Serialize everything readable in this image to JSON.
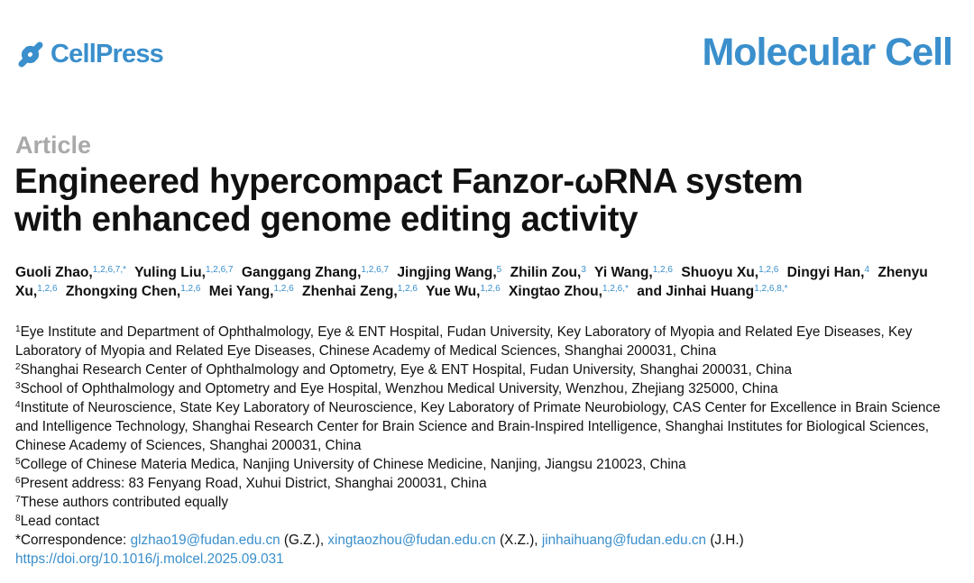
{
  "header": {
    "publisher": "CellPress",
    "journal": "Molecular Cell"
  },
  "article_type": "Article",
  "title_lines": [
    "Engineered hypercompact Fanzor-ωRNA system",
    "with enhanced genome editing activity"
  ],
  "authors": [
    {
      "name": "Guoli Zhao,",
      "affil": "1,2,6,7,*"
    },
    {
      "name": "Yuling Liu,",
      "affil": "1,2,6,7"
    },
    {
      "name": "Ganggang Zhang,",
      "affil": "1,2,6,7"
    },
    {
      "name": "Jingjing Wang,",
      "affil": "5"
    },
    {
      "name": "Zhilin Zou,",
      "affil": "3"
    },
    {
      "name": "Yi Wang,",
      "affil": "1,2,6"
    },
    {
      "name": "Shuoyu Xu,",
      "affil": "1,2,6"
    },
    {
      "name": "Dingyi Han,",
      "affil": "4"
    },
    {
      "name": "Zhenyu Xu,",
      "affil": "1,2,6"
    },
    {
      "name": "Zhongxing Chen,",
      "affil": "1,2,6"
    },
    {
      "name": "Mei Yang,",
      "affil": "1,2,6"
    },
    {
      "name": "Zhenhai Zeng,",
      "affil": "1,2,6"
    },
    {
      "name": "Yue Wu,",
      "affil": "1,2,6"
    },
    {
      "name": "Xingtao Zhou,",
      "affil": "1,2,6,*"
    },
    {
      "name": "and Jinhai Huang",
      "affil": "1,2,6,8,*"
    }
  ],
  "affiliations": [
    {
      "num": "1",
      "text": "Eye Institute and Department of Ophthalmology, Eye & ENT Hospital, Fudan University, Key Laboratory of Myopia and Related Eye Diseases, Key Laboratory of Myopia and Related Eye Diseases, Chinese Academy of Medical Sciences, Shanghai 200031, China"
    },
    {
      "num": "2",
      "text": "Shanghai Research Center of Ophthalmology and Optometry, Eye & ENT Hospital, Fudan University, Shanghai 200031, China"
    },
    {
      "num": "3",
      "text": "School of Ophthalmology and Optometry and Eye Hospital, Wenzhou Medical University, Wenzhou, Zhejiang 325000, China"
    },
    {
      "num": "4",
      "text": "Institute of Neuroscience, State Key Laboratory of Neuroscience, Key Laboratory of Primate Neurobiology, CAS Center for Excellence in Brain Science and Intelligence Technology, Shanghai Research Center for Brain Science and Brain-Inspired Intelligence, Shanghai Institutes for Biological Sciences, Chinese Academy of Sciences, Shanghai 200031, China"
    },
    {
      "num": "5",
      "text": "College of Chinese Materia Medica, Nanjing University of Chinese Medicine, Nanjing, Jiangsu 210023, China"
    },
    {
      "num": "6",
      "text": "Present address: 83 Fenyang Road, Xuhui District, Shanghai 200031, China"
    },
    {
      "num": "7",
      "text": "These authors contributed equally"
    },
    {
      "num": "8",
      "text": "Lead contact"
    }
  ],
  "correspondence": {
    "label": "*Correspondence:",
    "entries": [
      {
        "email": "glzhao19@fudan.edu.cn",
        "note": "(G.Z.),"
      },
      {
        "email": "xingtaozhou@fudan.edu.cn",
        "note": "(X.Z.),"
      },
      {
        "email": "jinhaihuang@fudan.edu.cn",
        "note": "(J.H.)"
      }
    ]
  },
  "doi": "https://doi.org/10.1016/j.molcel.2025.09.031"
}
